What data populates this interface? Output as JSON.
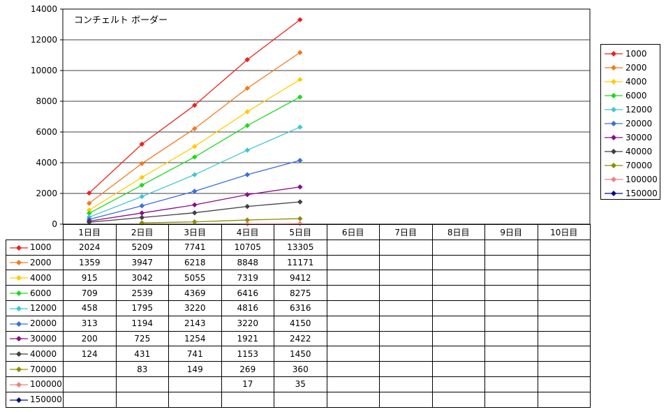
{
  "chart_data": {
    "type": "line",
    "title": "コンチェルト ボーダー",
    "categories": [
      "1日目",
      "2日目",
      "3日目",
      "4日目",
      "5日目",
      "6日目",
      "7日目",
      "8日目",
      "9日目",
      "10日目"
    ],
    "ylim": [
      0,
      14000
    ],
    "yticks": [
      0,
      2000,
      4000,
      6000,
      8000,
      10000,
      12000,
      14000
    ],
    "grid": true,
    "legend_position": "right",
    "series": [
      {
        "name": "1000",
        "color": "#e8241b",
        "values": [
          2024,
          5209,
          7741,
          10705,
          13305,
          null,
          null,
          null,
          null,
          null
        ]
      },
      {
        "name": "2000",
        "color": "#f07a1e",
        "values": [
          1359,
          3947,
          6218,
          8848,
          11171,
          null,
          null,
          null,
          null,
          null
        ]
      },
      {
        "name": "4000",
        "color": "#ffcc00",
        "values": [
          915,
          3042,
          5055,
          7319,
          9412,
          null,
          null,
          null,
          null,
          null
        ]
      },
      {
        "name": "6000",
        "color": "#1ed81e",
        "values": [
          709,
          2539,
          4369,
          6416,
          8275,
          null,
          null,
          null,
          null,
          null
        ]
      },
      {
        "name": "12000",
        "color": "#3cc8d0",
        "values": [
          458,
          1795,
          3220,
          4816,
          6316,
          null,
          null,
          null,
          null,
          null
        ]
      },
      {
        "name": "20000",
        "color": "#3a6fe0",
        "values": [
          313,
          1194,
          2143,
          3220,
          4150,
          null,
          null,
          null,
          null,
          null
        ]
      },
      {
        "name": "30000",
        "color": "#8a0c8a",
        "values": [
          200,
          725,
          1254,
          1921,
          2422,
          null,
          null,
          null,
          null,
          null
        ]
      },
      {
        "name": "40000",
        "color": "#404040",
        "values": [
          124,
          431,
          741,
          1153,
          1450,
          null,
          null,
          null,
          null,
          null
        ]
      },
      {
        "name": "70000",
        "color": "#8c8c00",
        "values": [
          null,
          83,
          149,
          269,
          360,
          null,
          null,
          null,
          null,
          null
        ]
      },
      {
        "name": "100000",
        "color": "#f08080",
        "values": [
          null,
          null,
          null,
          17,
          35,
          null,
          null,
          null,
          null,
          null
        ]
      },
      {
        "name": "150000",
        "color": "#0c0c80",
        "values": [
          null,
          null,
          null,
          null,
          null,
          null,
          null,
          null,
          null,
          null
        ]
      }
    ]
  }
}
